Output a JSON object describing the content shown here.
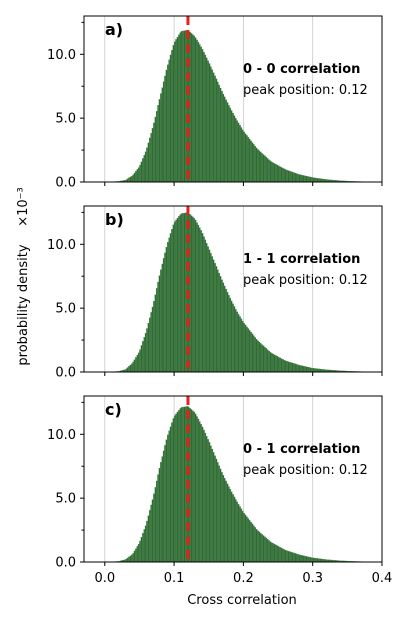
{
  "chart_data": [
    {
      "type": "bar",
      "panel_label": "a)",
      "annotation_title": "0 - 0 correlation",
      "annotation_peak": "peak position: 0.12",
      "peak_position": 0.12,
      "peak_value": 11.9,
      "xlim": [
        -0.03,
        0.4
      ],
      "ylim": [
        0,
        13.0
      ],
      "xticks": [
        0.0,
        0.1,
        0.2,
        0.3,
        0.4
      ],
      "yticks": [
        0.0,
        5.0,
        10.0
      ],
      "yticklabels": [
        "0.0",
        "5.0",
        "10.0"
      ],
      "bar_color": "#2e6b32",
      "peak_line_color": "#e8201a",
      "x": [
        0.0,
        0.02,
        0.03,
        0.04,
        0.05,
        0.06,
        0.07,
        0.08,
        0.09,
        0.1,
        0.11,
        0.12,
        0.13,
        0.14,
        0.15,
        0.16,
        0.17,
        0.18,
        0.19,
        0.2,
        0.22,
        0.24,
        0.26,
        0.28,
        0.3,
        0.32,
        0.34,
        0.36,
        0.38,
        0.4
      ],
      "values": [
        0.0,
        0.05,
        0.15,
        0.5,
        1.2,
        2.5,
        4.4,
        6.7,
        9.0,
        10.9,
        11.8,
        11.9,
        11.4,
        10.5,
        9.4,
        8.2,
        7.0,
        5.9,
        4.9,
        4.0,
        2.6,
        1.6,
        1.0,
        0.6,
        0.35,
        0.2,
        0.1,
        0.05,
        0.02,
        0.0
      ]
    },
    {
      "type": "bar",
      "panel_label": "b)",
      "annotation_title": "1 - 1 correlation",
      "annotation_peak": "peak position: 0.12",
      "peak_position": 0.12,
      "peak_value": 12.5,
      "xlim": [
        -0.03,
        0.4
      ],
      "ylim": [
        0,
        13.0
      ],
      "xticks": [
        0.0,
        0.1,
        0.2,
        0.3,
        0.4
      ],
      "yticks": [
        0.0,
        5.0,
        10.0
      ],
      "yticklabels": [
        "0.0",
        "5.0",
        "10.0"
      ],
      "bar_color": "#2e6b32",
      "peak_line_color": "#e8201a",
      "x": [
        0.0,
        0.02,
        0.03,
        0.04,
        0.05,
        0.06,
        0.07,
        0.08,
        0.09,
        0.1,
        0.11,
        0.12,
        0.13,
        0.14,
        0.15,
        0.16,
        0.17,
        0.18,
        0.19,
        0.2,
        0.22,
        0.24,
        0.26,
        0.28,
        0.3,
        0.32,
        0.34,
        0.36,
        0.38,
        0.4
      ],
      "values": [
        0.0,
        0.05,
        0.2,
        0.7,
        1.6,
        3.2,
        5.3,
        7.8,
        10.0,
        11.7,
        12.4,
        12.5,
        12.0,
        11.0,
        9.7,
        8.4,
        7.1,
        5.9,
        4.8,
        3.9,
        2.5,
        1.5,
        0.9,
        0.55,
        0.3,
        0.18,
        0.1,
        0.05,
        0.02,
        0.0
      ]
    },
    {
      "type": "bar",
      "panel_label": "c)",
      "annotation_title": "0 - 1 correlation",
      "annotation_peak": "peak position: 0.12",
      "peak_position": 0.12,
      "peak_value": 12.2,
      "xlim": [
        -0.03,
        0.4
      ],
      "ylim": [
        0,
        13.0
      ],
      "xticks": [
        0.0,
        0.1,
        0.2,
        0.3,
        0.4
      ],
      "xticklabels": [
        "0.0",
        "0.1",
        "0.2",
        "0.3",
        "0.4"
      ],
      "yticks": [
        0.0,
        5.0,
        10.0
      ],
      "yticklabels": [
        "0.0",
        "5.0",
        "10.0"
      ],
      "bar_color": "#2e6b32",
      "peak_line_color": "#e8201a",
      "x": [
        0.0,
        0.02,
        0.03,
        0.04,
        0.05,
        0.06,
        0.07,
        0.08,
        0.09,
        0.1,
        0.11,
        0.12,
        0.13,
        0.14,
        0.15,
        0.16,
        0.17,
        0.18,
        0.19,
        0.2,
        0.22,
        0.24,
        0.26,
        0.28,
        0.3,
        0.32,
        0.34,
        0.36,
        0.38,
        0.4
      ],
      "values": [
        0.0,
        0.05,
        0.2,
        0.6,
        1.5,
        3.0,
        5.1,
        7.6,
        9.8,
        11.4,
        12.1,
        12.2,
        11.7,
        10.7,
        9.5,
        8.2,
        6.9,
        5.8,
        4.8,
        3.9,
        2.5,
        1.55,
        0.95,
        0.58,
        0.33,
        0.19,
        0.1,
        0.05,
        0.02,
        0.0
      ]
    }
  ],
  "xlabel": "Cross correlation",
  "ylabel": "probability density",
  "ylabel_multiplier": "×10⁻³"
}
